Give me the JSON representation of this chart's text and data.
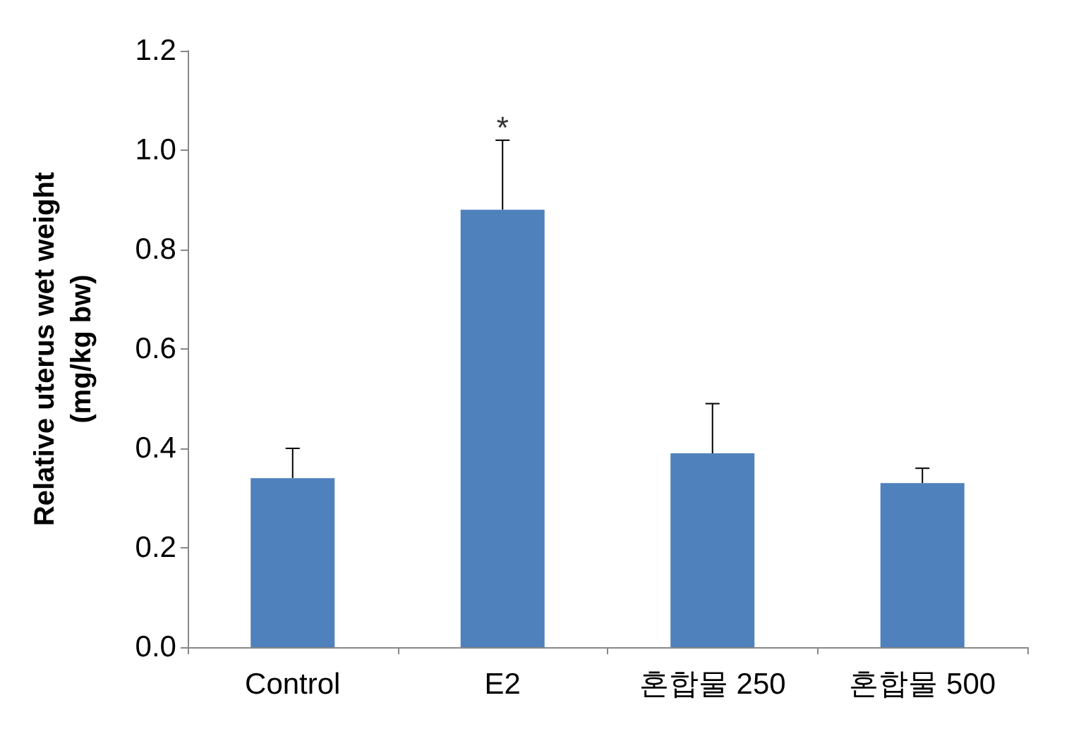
{
  "chart_data": {
    "type": "bar",
    "ylabel": "Relative uterus wet weight\n(mg/kg bw)",
    "categories": [
      "Control",
      "E2",
      "혼합물 250",
      "혼합물 500"
    ],
    "values": [
      0.34,
      0.88,
      0.39,
      0.33
    ],
    "errors": [
      [
        0.34,
        0.4
      ],
      [
        0.88,
        1.02
      ],
      [
        0.39,
        0.49
      ],
      [
        0.33,
        0.36
      ]
    ],
    "color": "#4f81bd",
    "ylim": [
      0,
      1.2
    ],
    "yticks": [
      {
        "value": 0,
        "label": "0.0"
      },
      {
        "value": 0.2,
        "label": "0.2"
      },
      {
        "value": 0.4,
        "label": "0.4"
      },
      {
        "value": 0.6,
        "label": "0.6"
      },
      {
        "value": 0.8,
        "label": "0.8"
      },
      {
        "value": 1,
        "label": "1.0"
      },
      {
        "value": 1.2,
        "label": "1.2"
      }
    ],
    "annotations": [
      {
        "text": "*",
        "x": "E2",
        "y": 1.02
      }
    ],
    "grid": false
  }
}
